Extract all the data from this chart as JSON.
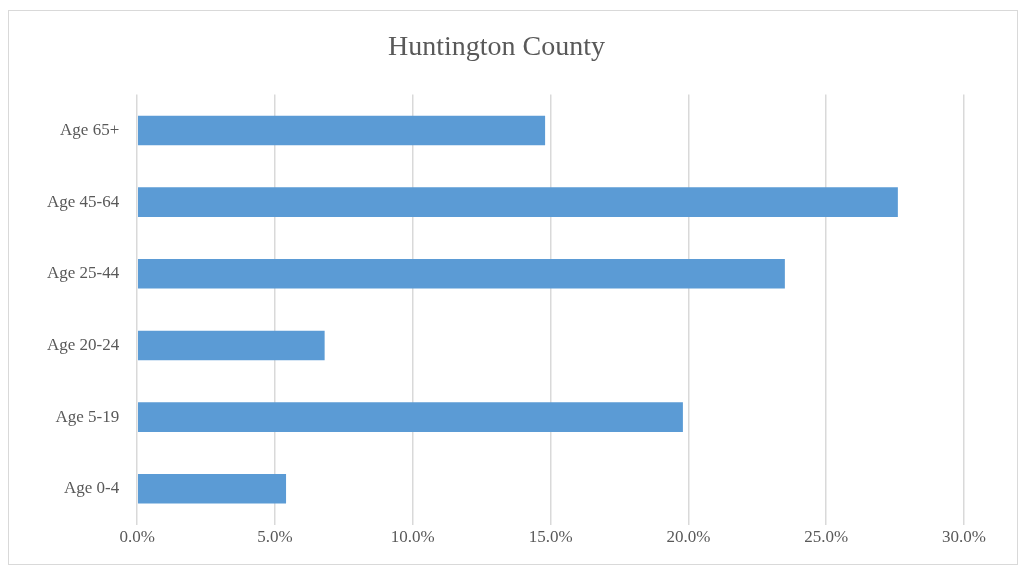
{
  "chart_data": {
    "type": "bar",
    "orientation": "horizontal",
    "title": "Huntington County",
    "categories": [
      "Age 65+",
      "Age 45-64",
      "Age 25-44",
      "Age 20-24",
      "Age 5-19",
      "Age 0-4"
    ],
    "values": [
      14.8,
      27.6,
      23.5,
      6.8,
      19.8,
      5.4
    ],
    "color": "#5b9bd5",
    "xlim": [
      0,
      30
    ],
    "xticks": [
      {
        "value": 0,
        "label": "0.0%"
      },
      {
        "value": 5,
        "label": "5.0%"
      },
      {
        "value": 10,
        "label": "10.0%"
      },
      {
        "value": 15,
        "label": "15.0%"
      },
      {
        "value": 20,
        "label": "20.0%"
      },
      {
        "value": 25,
        "label": "25.0%"
      },
      {
        "value": 30,
        "label": "30.0%"
      }
    ],
    "grid": "x",
    "legend": false
  }
}
